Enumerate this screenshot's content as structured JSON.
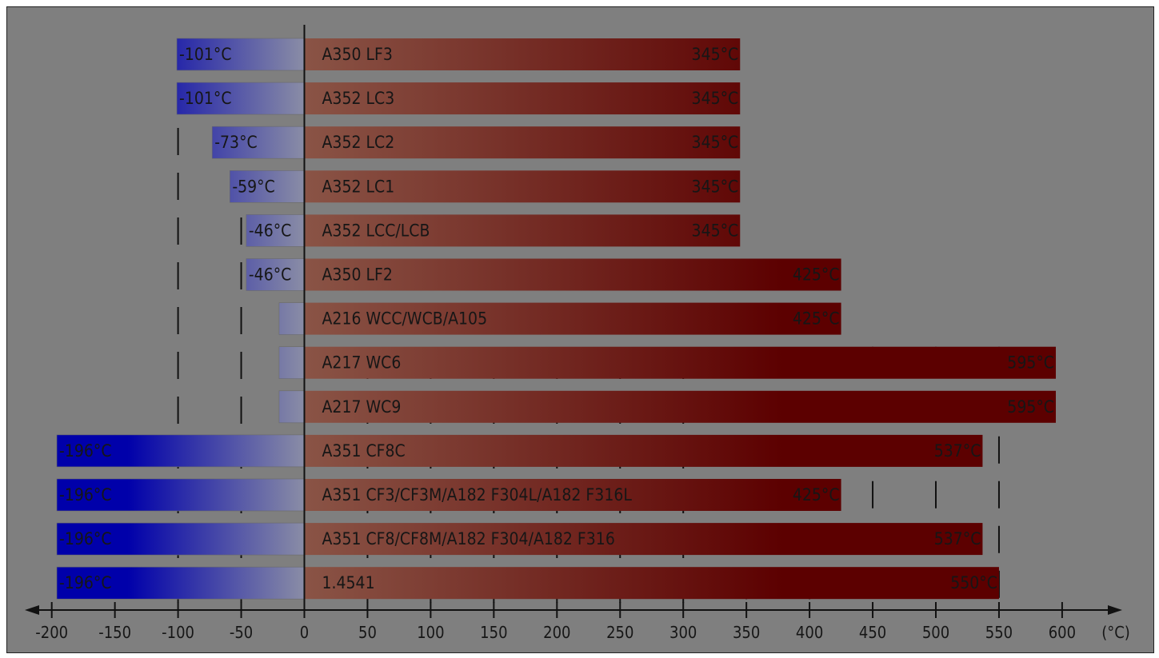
{
  "chart_data": {
    "type": "bar",
    "title": "",
    "xlabel": "(°C)",
    "ylabel": "",
    "xlim": [
      -200,
      600
    ],
    "x_ticks": [
      "-200",
      "-150",
      "-100",
      "-50",
      "0",
      "50",
      "100",
      "150",
      "200",
      "250",
      "300",
      "350",
      "400",
      "450",
      "500",
      "550",
      "600"
    ],
    "unit_label": "(°C)",
    "colors": {
      "cold_start": "#0000aa",
      "cold_end": "#8a8da6",
      "hot_start": "#8a5446",
      "hot_end": "#5c0000",
      "background": "#7f7f7f"
    },
    "categories": [
      "A350 LF3",
      "A352 LC3",
      "A352 LC2",
      "A352 LC1",
      "A352 LCC/LCB",
      "A350 LF2",
      "A216 WCC/WCB/A105",
      "A217 WC6",
      "A217 WC9",
      "A351 CF8C",
      "A351 CF3/CF3M/A182 F304L/A182 F316L",
      "A351 CF8/CF8M/A182 F304/A182 F316",
      "1.4541"
    ],
    "series": [
      {
        "name": "",
        "values": [
          -101,
          -101,
          -73,
          -59,
          -46,
          -46,
          -20,
          -20,
          -20,
          -196,
          -196,
          -196,
          -196
        ],
        "labels": [
          "-101°C",
          "-101°C",
          "-73°C",
          "-59°C",
          "-46°C",
          "-46°C",
          "",
          "",
          "",
          "-196°C",
          "-196°C",
          "-196°C",
          "-196°C"
        ]
      },
      {
        "name": "",
        "values": [
          345,
          345,
          345,
          345,
          345,
          425,
          425,
          595,
          595,
          537,
          425,
          537,
          550
        ],
        "labels": [
          "345°C",
          "345°C",
          "345°C",
          "345°C",
          "345°C",
          "425°C",
          "425°C",
          "595°C",
          "595°C",
          "537°C",
          "425°C",
          "537°C",
          "550°C"
        ]
      }
    ]
  }
}
